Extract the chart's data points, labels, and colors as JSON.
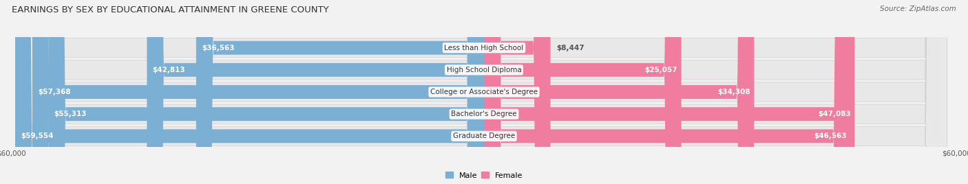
{
  "title": "EARNINGS BY SEX BY EDUCATIONAL ATTAINMENT IN GREENE COUNTY",
  "source": "Source: ZipAtlas.com",
  "categories": [
    "Less than High School",
    "High School Diploma",
    "College or Associate's Degree",
    "Bachelor's Degree",
    "Graduate Degree"
  ],
  "male_values": [
    36563,
    42813,
    57368,
    55313,
    59554
  ],
  "female_values": [
    8447,
    25057,
    34308,
    47083,
    46563
  ],
  "male_color": "#7bafd4",
  "female_color": "#f07ca0",
  "male_label": "Male",
  "female_label": "Female",
  "x_max": 60000,
  "background_color": "#f2f2f2",
  "row_bg_color": "#e8e8e8",
  "title_fontsize": 9.5,
  "source_fontsize": 7.5,
  "value_fontsize": 7.5,
  "cat_fontsize": 7.5,
  "tick_fontsize": 7.5
}
